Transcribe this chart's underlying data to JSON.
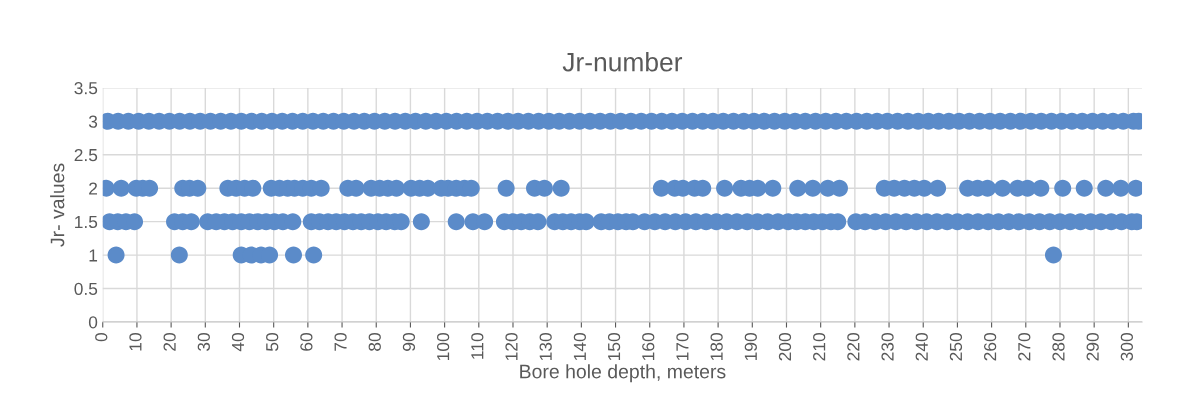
{
  "chart_data": {
    "type": "scatter",
    "title": "Jr-number",
    "xlabel": "Bore hole depth, meters",
    "ylabel": "Jr- values",
    "xlim": [
      0,
      304
    ],
    "xticks": [
      0,
      10,
      20,
      30,
      40,
      50,
      60,
      70,
      80,
      90,
      100,
      110,
      120,
      130,
      140,
      150,
      160,
      170,
      180,
      190,
      200,
      210,
      220,
      230,
      240,
      250,
      260,
      270,
      280,
      290,
      300
    ],
    "ylim": [
      0,
      3.5
    ],
    "yticks": [
      0,
      0.5,
      1,
      1.5,
      2,
      2.5,
      3,
      3.5
    ],
    "grid": true,
    "marker": "circle",
    "series": [
      {
        "color": "#5b8bc9",
        "x": [
          1.5,
          4.5,
          7.5,
          10.5,
          13.5,
          16.5,
          19.5,
          22.5,
          25.5,
          28.5,
          31.5,
          34.5,
          37.5,
          40.5,
          43.5,
          46.5,
          49.5,
          52.5,
          55.5,
          58.5,
          61.5,
          64.5,
          67.5,
          70.5,
          73.5,
          76.5,
          79.5,
          82.5,
          85.5,
          88.5,
          91.5,
          94.5,
          97.5,
          100.5,
          103.5,
          106.5,
          109.5,
          112.5,
          115.5,
          118.5,
          121.5,
          124.5,
          127.5,
          130.5,
          133.5,
          136.5,
          139.5,
          142.5,
          145.5,
          148.5,
          151.5,
          154.5,
          157.5,
          160.5,
          163.5,
          166.5,
          169.5,
          172.5,
          175.5,
          178.5,
          181.5,
          184.5,
          187.5,
          190.5,
          193.5,
          196.5,
          199.5,
          202.5,
          205.5,
          208.5,
          211.5,
          214.5,
          217.5,
          220.5,
          223.5,
          226.5,
          229.5,
          232.5,
          235.5,
          238.5,
          241.5,
          244.5,
          247.5,
          250.5,
          253.5,
          256.5,
          259.5,
          262.5,
          265.5,
          268.5,
          271.5,
          274.5,
          277.5,
          280.5,
          283.5,
          286.5,
          289.5,
          292.5,
          295.5,
          298.5,
          301.5,
          303
        ],
        "values": [
          3,
          3,
          3,
          3,
          3,
          3,
          3,
          3,
          3,
          3,
          3,
          3,
          3,
          3,
          3,
          3,
          3,
          3,
          3,
          3,
          3,
          3,
          3,
          3,
          3,
          3,
          3,
          3,
          3,
          3,
          3,
          3,
          3,
          3,
          3,
          3,
          3,
          3,
          3,
          3,
          3,
          3,
          3,
          3,
          3,
          3,
          3,
          3,
          3,
          3,
          3,
          3,
          3,
          3,
          3,
          3,
          3,
          3,
          3,
          3,
          3,
          3,
          3,
          3,
          3,
          3,
          3,
          3,
          3,
          3,
          3,
          3,
          3,
          3,
          3,
          3,
          3,
          3,
          3,
          3,
          3,
          3,
          3,
          3,
          3,
          3,
          3,
          3,
          3,
          3,
          3,
          3,
          3,
          3,
          3,
          3,
          3,
          3,
          3,
          3,
          3,
          3
        ]
      },
      {
        "color": "#5b8bc9",
        "x": [
          1,
          5.4,
          9.8,
          11.7,
          13.7,
          23.4,
          25.4,
          27.8,
          36.6,
          39,
          41.5,
          43.9,
          49.3,
          51.7,
          54.1,
          56.1,
          58.5,
          61,
          63.9,
          71.7,
          74.1,
          78.5,
          81,
          83.4,
          85.9,
          90.2,
          92.7,
          95.1,
          99,
          101,
          103.4,
          105.8,
          107.8,
          118,
          126.3,
          129.2,
          134.1,
          163.4,
          167.3,
          169.7,
          173.1,
          175.5,
          181.9,
          186.7,
          189.2,
          191.6,
          196,
          203.3,
          207.7,
          212.1,
          215.5,
          228.6,
          231.5,
          234.5,
          237.4,
          240.3,
          244.2,
          253,
          255.9,
          258.8,
          263.2,
          267.6,
          270.5,
          274.4,
          280.8,
          287.1,
          293.4,
          297.8,
          302.2
        ],
        "values": [
          2,
          2,
          2,
          2,
          2,
          2,
          2,
          2,
          2,
          2,
          2,
          2,
          2,
          2,
          2,
          2,
          2,
          2,
          2,
          2,
          2,
          2,
          2,
          2,
          2,
          2,
          2,
          2,
          2,
          2,
          2,
          2,
          2,
          2,
          2,
          2,
          2,
          2,
          2,
          2,
          2,
          2,
          2,
          2,
          2,
          2,
          2,
          2,
          2,
          2,
          2,
          2,
          2,
          2,
          2,
          2,
          2,
          2,
          2,
          2,
          2,
          2,
          2,
          2,
          2,
          2,
          2,
          2,
          2
        ]
      },
      {
        "color": "#5b8bc9",
        "x": [
          2,
          4.4,
          6.8,
          9.3,
          21,
          23.4,
          25.9,
          30.7,
          33.2,
          35.6,
          38,
          40.5,
          42.9,
          45.4,
          47.8,
          50.2,
          52.7,
          55.6,
          61,
          63.4,
          65.9,
          68.3,
          70.7,
          73.2,
          75.6,
          78,
          80.5,
          82.9,
          85.4,
          87.3,
          93.2,
          103.4,
          108.3,
          111.7,
          117.5,
          120,
          122.4,
          124.9,
          127.3,
          132.2,
          134.6,
          137,
          139.5,
          141.4,
          145.8,
          148.2,
          150.7,
          153.1,
          155.1,
          158.5,
          161.5,
          164.5,
          167.5,
          170.5,
          173.5,
          176.5,
          179.5,
          182.5,
          185.5,
          188.5,
          191.5,
          194.5,
          197.5,
          200.5,
          203,
          205.5,
          208,
          210.5,
          213,
          215,
          220.3,
          223,
          226,
          229,
          232,
          235,
          238,
          241,
          244,
          247,
          250,
          253,
          256,
          259,
          262,
          265,
          268,
          271,
          274,
          277,
          280,
          283,
          286,
          289,
          292,
          295,
          298,
          301,
          302.5
        ],
        "values": [
          1.5,
          1.5,
          1.5,
          1.5,
          1.5,
          1.5,
          1.5,
          1.5,
          1.5,
          1.5,
          1.5,
          1.5,
          1.5,
          1.5,
          1.5,
          1.5,
          1.5,
          1.5,
          1.5,
          1.5,
          1.5,
          1.5,
          1.5,
          1.5,
          1.5,
          1.5,
          1.5,
          1.5,
          1.5,
          1.5,
          1.5,
          1.5,
          1.5,
          1.5,
          1.5,
          1.5,
          1.5,
          1.5,
          1.5,
          1.5,
          1.5,
          1.5,
          1.5,
          1.5,
          1.5,
          1.5,
          1.5,
          1.5,
          1.5,
          1.5,
          1.5,
          1.5,
          1.5,
          1.5,
          1.5,
          1.5,
          1.5,
          1.5,
          1.5,
          1.5,
          1.5,
          1.5,
          1.5,
          1.5,
          1.5,
          1.5,
          1.5,
          1.5,
          1.5,
          1.5,
          1.5,
          1.5,
          1.5,
          1.5,
          1.5,
          1.5,
          1.5,
          1.5,
          1.5,
          1.5,
          1.5,
          1.5,
          1.5,
          1.5,
          1.5,
          1.5,
          1.5,
          1.5,
          1.5,
          1.5,
          1.5,
          1.5,
          1.5,
          1.5,
          1.5,
          1.5,
          1.5,
          1.5,
          1.5
        ]
      },
      {
        "color": "#5b8bc9",
        "x": [
          3.9,
          22.4,
          40.5,
          43.4,
          46.3,
          48.8,
          55.8,
          61.7,
          278.1
        ],
        "values": [
          1,
          1,
          1,
          1,
          1,
          1,
          1,
          1,
          1
        ]
      }
    ]
  }
}
